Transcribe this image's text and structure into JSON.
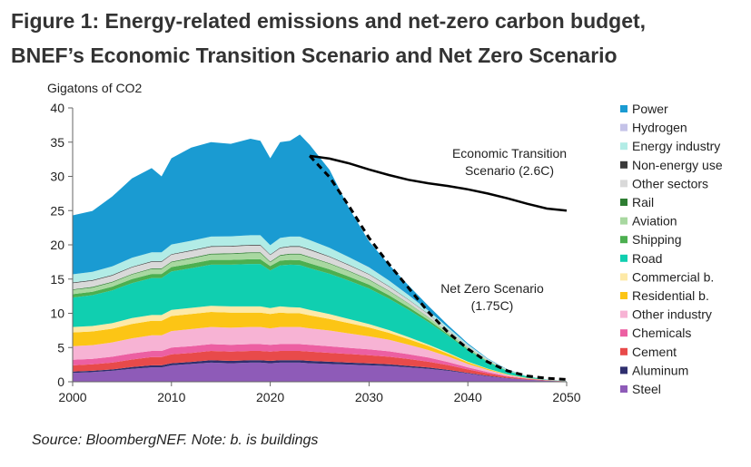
{
  "title": {
    "line1": "Figure 1: Energy-related emissions and net-zero carbon budget,",
    "line2": "BNEF’s Economic Transition Scenario and Net Zero Scenario"
  },
  "source_note": "Source: BloombergNEF. Note: b. is buildings",
  "chart_data": {
    "type": "area",
    "title": "Energy-related emissions and net-zero carbon budget",
    "ylabel": "Gigatons of CO2",
    "xlabel": "",
    "xlim": [
      2000,
      2050
    ],
    "ylim": [
      0,
      40
    ],
    "x_ticks": [
      2000,
      2010,
      2020,
      2030,
      2040,
      2050
    ],
    "y_ticks": [
      0,
      5,
      10,
      15,
      20,
      25,
      30,
      35,
      40
    ],
    "legend_position": "right",
    "x": [
      2000,
      2002,
      2004,
      2006,
      2008,
      2009,
      2010,
      2012,
      2014,
      2016,
      2018,
      2019,
      2020,
      2021,
      2022,
      2023,
      2024,
      2026,
      2028,
      2030,
      2032,
      2034,
      2036,
      2038,
      2040,
      2042,
      2044,
      2046,
      2048,
      2050
    ],
    "series": [
      {
        "name": "Steel",
        "color": "#8e5bb8",
        "values": [
          1.3,
          1.4,
          1.6,
          1.9,
          2.1,
          2.1,
          2.4,
          2.6,
          2.8,
          2.7,
          2.8,
          2.8,
          2.7,
          2.8,
          2.8,
          2.8,
          2.7,
          2.6,
          2.5,
          2.4,
          2.3,
          2.1,
          1.9,
          1.6,
          1.2,
          0.8,
          0.5,
          0.3,
          0.15,
          0.05
        ]
      },
      {
        "name": "Aluminum",
        "color": "#2f2f6e",
        "values": [
          0.2,
          0.2,
          0.2,
          0.25,
          0.3,
          0.3,
          0.3,
          0.3,
          0.35,
          0.35,
          0.35,
          0.35,
          0.35,
          0.35,
          0.35,
          0.35,
          0.35,
          0.33,
          0.3,
          0.28,
          0.25,
          0.22,
          0.18,
          0.14,
          0.1,
          0.07,
          0.04,
          0.02,
          0.01,
          0
        ]
      },
      {
        "name": "Cement",
        "color": "#e84a4a",
        "values": [
          0.9,
          0.95,
          1.0,
          1.1,
          1.2,
          1.2,
          1.3,
          1.3,
          1.35,
          1.35,
          1.35,
          1.35,
          1.35,
          1.35,
          1.35,
          1.35,
          1.35,
          1.3,
          1.25,
          1.2,
          1.1,
          1.0,
          0.85,
          0.7,
          0.5,
          0.35,
          0.2,
          0.1,
          0.05,
          0.02
        ]
      },
      {
        "name": "Chemicals",
        "color": "#ec5fa2",
        "values": [
          0.8,
          0.8,
          0.85,
          0.9,
          0.9,
          0.9,
          1.0,
          1.0,
          1.0,
          1.0,
          1.0,
          1.0,
          1.0,
          1.0,
          1.0,
          1.0,
          1.0,
          0.95,
          0.9,
          0.85,
          0.8,
          0.7,
          0.6,
          0.45,
          0.3,
          0.2,
          0.1,
          0.05,
          0.02,
          0
        ]
      },
      {
        "name": "Other industry",
        "color": "#f7b3d4",
        "values": [
          2.0,
          2.0,
          2.1,
          2.2,
          2.3,
          2.3,
          2.4,
          2.5,
          2.5,
          2.5,
          2.5,
          2.5,
          2.4,
          2.5,
          2.5,
          2.5,
          2.4,
          2.3,
          2.1,
          1.9,
          1.7,
          1.4,
          1.1,
          0.8,
          0.5,
          0.3,
          0.15,
          0.05,
          0.02,
          0
        ]
      },
      {
        "name": "Residential b.",
        "color": "#fcc515",
        "values": [
          2.0,
          2.0,
          2.0,
          2.1,
          2.1,
          2.1,
          2.2,
          2.2,
          2.2,
          2.2,
          2.1,
          2.1,
          2.1,
          2.1,
          2.0,
          2.0,
          1.9,
          1.7,
          1.5,
          1.3,
          1.0,
          0.8,
          0.6,
          0.4,
          0.25,
          0.15,
          0.07,
          0.03,
          0.01,
          0
        ]
      },
      {
        "name": "Commercial b.",
        "color": "#fde9a7",
        "values": [
          0.8,
          0.8,
          0.8,
          0.85,
          0.85,
          0.85,
          0.9,
          0.9,
          0.9,
          0.9,
          0.9,
          0.9,
          0.85,
          0.9,
          0.9,
          0.85,
          0.8,
          0.7,
          0.6,
          0.5,
          0.4,
          0.3,
          0.2,
          0.15,
          0.1,
          0.05,
          0.02,
          0.01,
          0,
          0
        ]
      },
      {
        "name": "Road",
        "color": "#10cfb0",
        "values": [
          4.3,
          4.5,
          4.8,
          5.1,
          5.4,
          5.4,
          5.6,
          5.8,
          6.0,
          6.1,
          6.2,
          6.2,
          5.5,
          6.0,
          6.2,
          6.2,
          6.1,
          5.9,
          5.6,
          5.2,
          4.6,
          4.0,
          3.3,
          2.5,
          1.7,
          1.0,
          0.5,
          0.2,
          0.05,
          0.01
        ]
      },
      {
        "name": "Shipping",
        "color": "#4caf50",
        "values": [
          0.5,
          0.5,
          0.55,
          0.6,
          0.6,
          0.6,
          0.65,
          0.65,
          0.7,
          0.7,
          0.7,
          0.7,
          0.65,
          0.7,
          0.7,
          0.7,
          0.7,
          0.65,
          0.6,
          0.55,
          0.5,
          0.4,
          0.3,
          0.2,
          0.12,
          0.06,
          0.02,
          0.01,
          0,
          0
        ]
      },
      {
        "name": "Aviation",
        "color": "#a8d8a0",
        "values": [
          0.6,
          0.6,
          0.6,
          0.65,
          0.7,
          0.7,
          0.7,
          0.75,
          0.8,
          0.85,
          0.9,
          0.9,
          0.55,
          0.7,
          0.8,
          0.85,
          0.85,
          0.8,
          0.75,
          0.7,
          0.6,
          0.5,
          0.4,
          0.3,
          0.2,
          0.12,
          0.06,
          0.02,
          0.01,
          0
        ]
      },
      {
        "name": "Rail",
        "color": "#2e7d32",
        "values": [
          0.1,
          0.1,
          0.1,
          0.1,
          0.1,
          0.1,
          0.1,
          0.1,
          0.1,
          0.1,
          0.1,
          0.1,
          0.1,
          0.1,
          0.1,
          0.1,
          0.1,
          0.09,
          0.08,
          0.07,
          0.06,
          0.05,
          0.04,
          0.03,
          0.02,
          0.01,
          0,
          0,
          0,
          0
        ]
      },
      {
        "name": "Other sectors",
        "color": "#d9d9d9",
        "values": [
          0.9,
          0.9,
          0.9,
          0.95,
          0.95,
          0.95,
          1.0,
          1.0,
          1.0,
          1.0,
          1.0,
          1.0,
          0.95,
          1.0,
          1.0,
          1.0,
          1.0,
          0.9,
          0.8,
          0.7,
          0.6,
          0.5,
          0.4,
          0.3,
          0.2,
          0.1,
          0.05,
          0.02,
          0,
          0
        ]
      },
      {
        "name": "Non-energy use",
        "color": "#3a3a3a",
        "values": [
          0.1,
          0.1,
          0.1,
          0.1,
          0.1,
          0.1,
          0.1,
          0.1,
          0.1,
          0.1,
          0.1,
          0.1,
          0.1,
          0.1,
          0.1,
          0.1,
          0.1,
          0.1,
          0.09,
          0.08,
          0.07,
          0.06,
          0.05,
          0.04,
          0.03,
          0.02,
          0.01,
          0,
          0,
          0
        ]
      },
      {
        "name": "Energy industry",
        "color": "#b2ece6",
        "values": [
          1.2,
          1.2,
          1.25,
          1.3,
          1.3,
          1.3,
          1.4,
          1.4,
          1.4,
          1.4,
          1.4,
          1.4,
          1.35,
          1.4,
          1.4,
          1.4,
          1.35,
          1.25,
          1.1,
          0.95,
          0.8,
          0.6,
          0.45,
          0.3,
          0.2,
          0.1,
          0.05,
          0.02,
          0.01,
          0
        ]
      },
      {
        "name": "Hydrogen",
        "color": "#c5c3e8",
        "values": [
          0,
          0,
          0,
          0,
          0,
          0,
          0,
          0,
          0,
          0,
          0,
          0,
          0,
          0,
          0,
          0,
          0,
          0,
          0.02,
          0.03,
          0.03,
          0.03,
          0.03,
          0.02,
          0.02,
          0.01,
          0.01,
          0,
          0,
          0
        ]
      },
      {
        "name": "Power",
        "color": "#1a9bd2",
        "values": [
          8.6,
          8.9,
          10.2,
          11.6,
          12.3,
          11.1,
          12.6,
          13.6,
          13.8,
          13.5,
          14.1,
          13.8,
          12.7,
          14.0,
          14.0,
          14.9,
          13.9,
          11.4,
          7.1,
          3.8,
          2.3,
          1.4,
          0.7,
          0.33,
          0.17,
          0.08,
          0.03,
          0.02,
          0.01,
          0
        ]
      }
    ],
    "economic_transition": {
      "label_line1": "Economic Transition",
      "label_line2": "Scenario (2.6C)",
      "x": [
        2024,
        2026,
        2028,
        2030,
        2032,
        2034,
        2036,
        2038,
        2040,
        2042,
        2044,
        2046,
        2048,
        2050
      ],
      "values": [
        33.0,
        32.6,
        31.9,
        31.0,
        30.2,
        29.5,
        29.0,
        28.6,
        28.1,
        27.5,
        26.8,
        26.0,
        25.3,
        25.0
      ]
    },
    "net_zero": {
      "label_line1": "Net Zero Scenario",
      "label_line2": "(1.75C)",
      "x": [
        2024,
        2026,
        2028,
        2030,
        2032,
        2034,
        2036,
        2038,
        2040,
        2042,
        2044,
        2046,
        2048,
        2050
      ],
      "values": [
        33.0,
        29.9,
        25.6,
        21.0,
        17.2,
        13.7,
        10.2,
        7.2,
        4.8,
        2.9,
        1.6,
        0.85,
        0.5,
        0.35
      ]
    }
  }
}
